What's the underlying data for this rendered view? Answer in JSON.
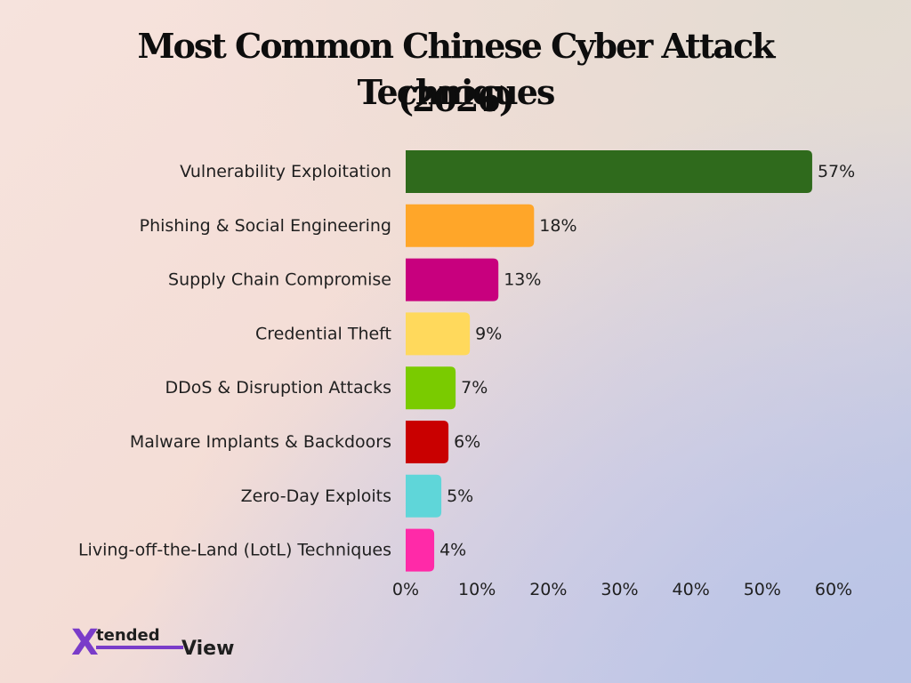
{
  "title_line1": "Most Common Chinese Cyber Attack Techniques",
  "title_line2": "(2026)",
  "brand": {
    "logo_text_tended": "tended",
    "logo_text_view": "View",
    "logo_letter": "X",
    "colors": {
      "purple": "#7a3cc9",
      "yellow": "#f0c419",
      "dark": "#1f1f1f"
    }
  },
  "chart_data": {
    "type": "bar",
    "orientation": "horizontal",
    "title": "Most Common Chinese Cyber Attack Techniques (2026)",
    "xlabel": "",
    "ylabel": "",
    "xlim": [
      0,
      60
    ],
    "x_ticks": [
      0,
      10,
      20,
      30,
      40,
      50,
      60
    ],
    "tick_suffix": "%",
    "grid": false,
    "legend": "none",
    "categories": [
      "Vulnerability Exploitation",
      "Phishing & Social Engineering",
      "Supply Chain Compromise",
      "Credential Theft",
      "DDoS & Disruption Attacks",
      "Malware Implants & Backdoors",
      "Zero-Day Exploits",
      "Living-off-the-Land (LotL) Techniques"
    ],
    "values": [
      57,
      18,
      13,
      9,
      7,
      6,
      5,
      4
    ],
    "data_labels": [
      "57%",
      "18%",
      "13%",
      "9%",
      "7%",
      "6%",
      "5%",
      "4%"
    ],
    "colors": [
      "#2f6a1c",
      "#ffa629",
      "#c8007e",
      "#ffd95c",
      "#7acb00",
      "#c90000",
      "#5fd6d9",
      "#ff2aa8"
    ]
  }
}
